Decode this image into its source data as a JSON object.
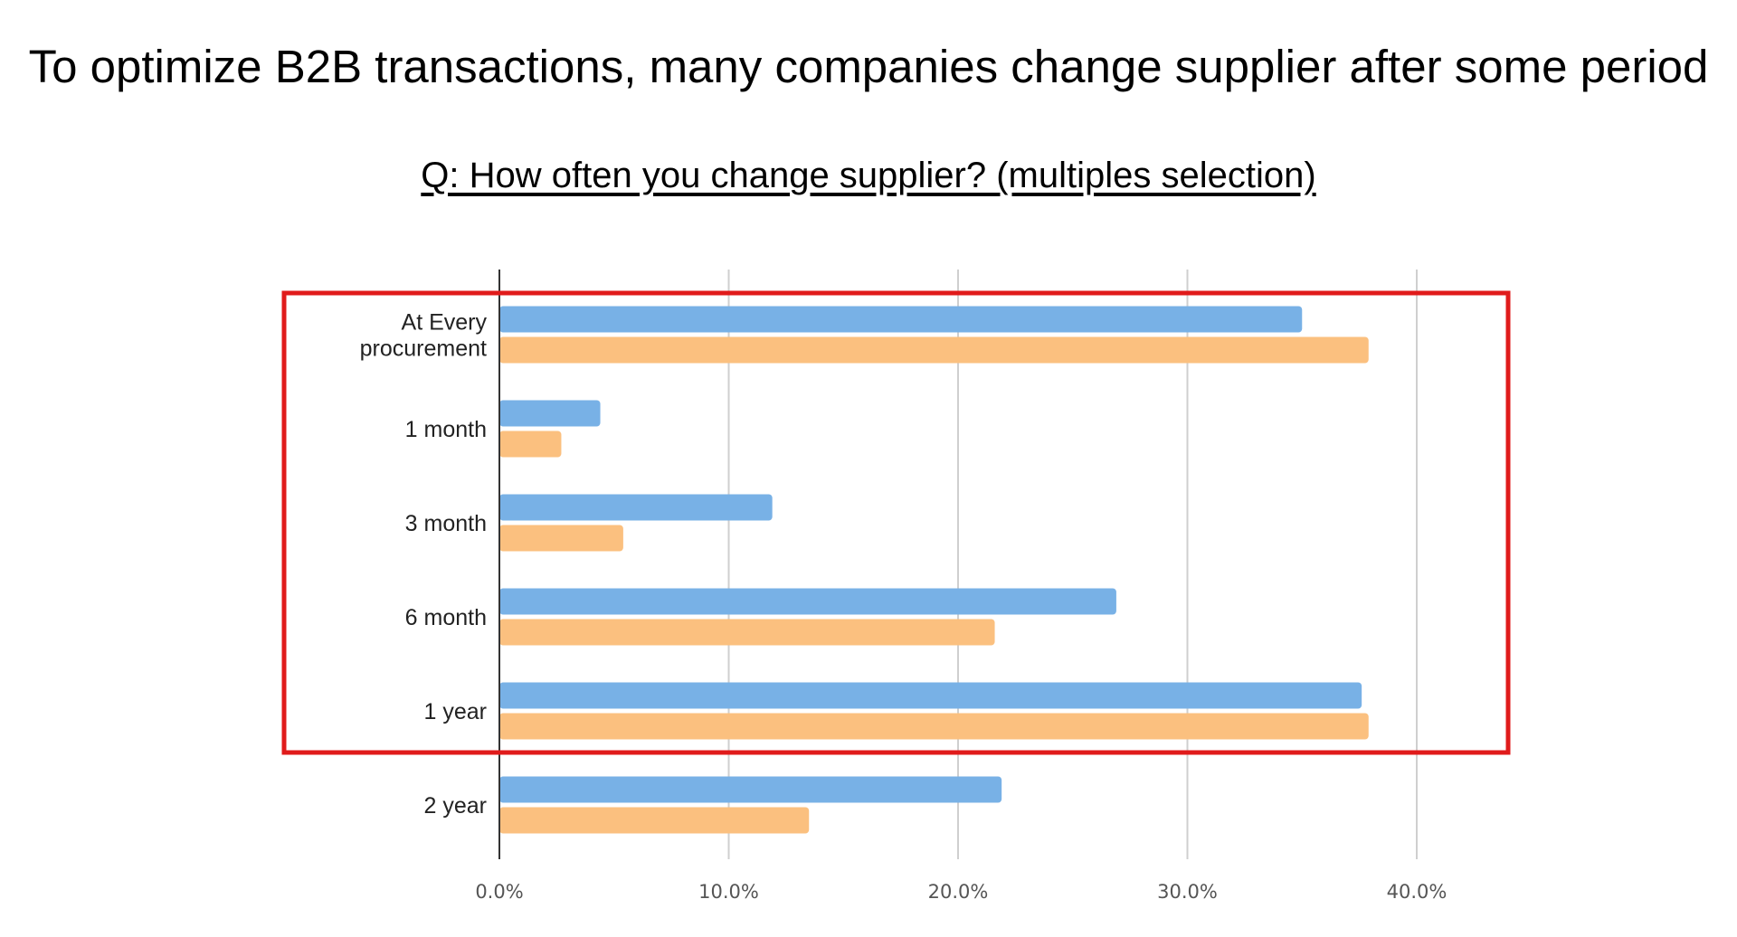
{
  "title": "To optimize B2B transactions, many companies change supplier after some period",
  "question": "Q: How often you change supplier? (multiples selection)",
  "chart_data": {
    "type": "bar",
    "orientation": "horizontal",
    "categories": [
      [
        "At Every",
        "procurement"
      ],
      [
        "1 month"
      ],
      [
        "3 month"
      ],
      [
        "6 month"
      ],
      [
        "1 year"
      ],
      [
        "2 year"
      ]
    ],
    "series": [
      {
        "color": "#78b1e6",
        "values": [
          35.0,
          4.4,
          11.9,
          26.9,
          37.6,
          21.9
        ]
      },
      {
        "color": "#fbc07f",
        "values": [
          37.9,
          2.7,
          5.4,
          21.6,
          37.9,
          13.5
        ]
      }
    ],
    "xlim": [
      0,
      40
    ],
    "xticks": [
      0,
      10,
      20,
      30,
      40
    ],
    "xtick_labels": [
      "0.0%",
      "10.0%",
      "20.0%",
      "30.0%",
      "40.0%"
    ],
    "grid": true,
    "highlight": {
      "from_category": 0,
      "to_category": 4,
      "color": "#e01b1b"
    }
  }
}
